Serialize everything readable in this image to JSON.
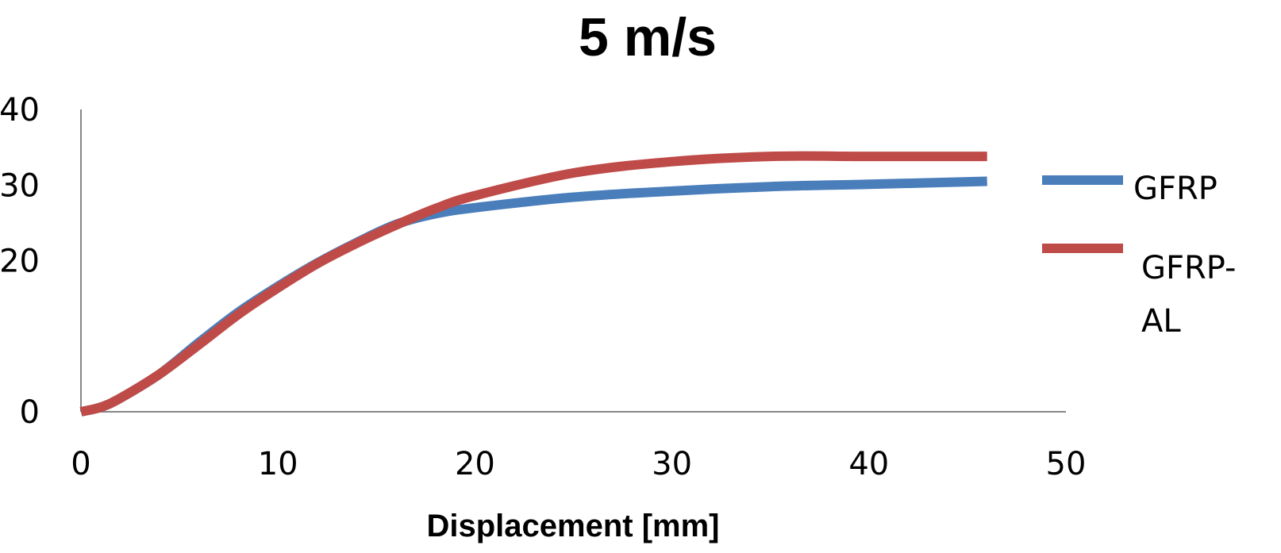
{
  "chart_data": {
    "type": "line",
    "title": "5 m/s",
    "xlabel": "Displacement [mm]",
    "ylabel": "",
    "xlim": [
      0,
      50
    ],
    "ylim": [
      0,
      40
    ],
    "x_ticks": [
      "0",
      "10",
      "20",
      "30",
      "40",
      "50"
    ],
    "y_ticks": [
      "0",
      "20",
      "30",
      "40"
    ],
    "grid": false,
    "legend_position": "right",
    "series": [
      {
        "name": "GFRP",
        "color": "#4A7EBB",
        "x": [
          0,
          1,
          2,
          4,
          6,
          8,
          10,
          12,
          14,
          16,
          18,
          20,
          25,
          30,
          35,
          40,
          46
        ],
        "y": [
          0,
          0.6,
          1.8,
          5.0,
          9.2,
          13.2,
          16.6,
          19.7,
          22.4,
          24.8,
          26.2,
          27.0,
          28.4,
          29.2,
          29.8,
          30.1,
          30.5
        ]
      },
      {
        "name": "GFRP-AL",
        "color": "#BE4B48",
        "x": [
          0,
          1,
          2,
          4,
          6,
          8,
          10,
          12,
          14,
          16,
          18,
          20,
          25,
          30,
          35,
          40,
          46
        ],
        "y": [
          0,
          0.6,
          1.8,
          5.0,
          8.9,
          12.9,
          16.4,
          19.6,
          22.3,
          24.7,
          26.9,
          28.6,
          31.6,
          33.1,
          33.8,
          33.8,
          33.8
        ]
      }
    ]
  }
}
